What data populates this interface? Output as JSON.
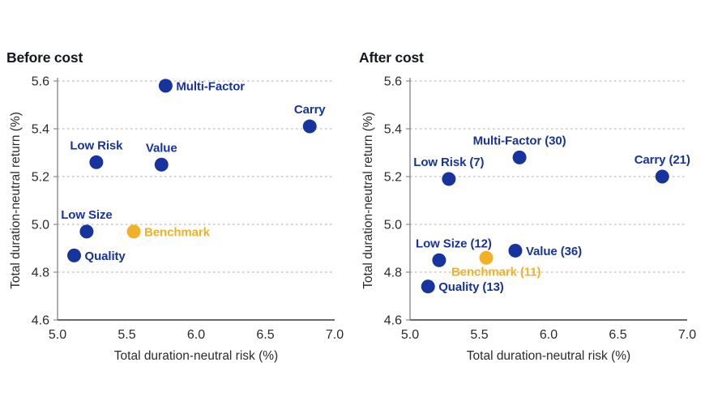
{
  "page": {
    "background": "#ffffff"
  },
  "colors": {
    "factor_blue": "#16339E",
    "benchmark_yellow": "#F2B027",
    "title_text": "#14171D",
    "axis_text": "#2B2B2B",
    "axis_line": "#8A8A8A",
    "axis_line_dark": "#6B6B6B",
    "gridline": "#ADADAD"
  },
  "chart_data": [
    {
      "type": "scatter",
      "title": "Before cost",
      "xlabel": "Total duration-neutral risk (%)",
      "ylabel": "Total duration-neutral return (%)",
      "xlim": [
        5.0,
        7.0
      ],
      "ylim": [
        4.6,
        5.6
      ],
      "xticks": [
        "5.0",
        "5.5",
        "6.0",
        "6.5",
        "7.0"
      ],
      "yticks": [
        "4.6",
        "4.8",
        "5.0",
        "5.2",
        "5.4",
        "5.6"
      ],
      "grid": "horizontal dashed gridlines, no legend",
      "points": [
        {
          "label": "Multi-Factor",
          "x": 5.78,
          "y": 5.58,
          "color": "factor_blue",
          "label_pos": "right"
        },
        {
          "label": "Carry",
          "x": 6.82,
          "y": 5.41,
          "color": "factor_blue",
          "label_pos": "above"
        },
        {
          "label": "Low Risk",
          "x": 5.28,
          "y": 5.26,
          "color": "factor_blue",
          "label_pos": "above"
        },
        {
          "label": "Value",
          "x": 5.75,
          "y": 5.25,
          "color": "factor_blue",
          "label_pos": "above"
        },
        {
          "label": "Low Size",
          "x": 5.21,
          "y": 4.97,
          "color": "factor_blue",
          "label_pos": "above"
        },
        {
          "label": "Benchmark",
          "x": 5.55,
          "y": 4.97,
          "color": "benchmark_yellow",
          "label_pos": "right"
        },
        {
          "label": "Quality",
          "x": 5.12,
          "y": 4.87,
          "color": "factor_blue",
          "label_pos": "right"
        }
      ]
    },
    {
      "type": "scatter",
      "title": "After cost",
      "xlabel": "Total duration-neutral risk (%)",
      "ylabel": "Total duration-neutral return (%)",
      "xlim": [
        5.0,
        7.0
      ],
      "ylim": [
        4.6,
        5.6
      ],
      "xticks": [
        "5.0",
        "5.5",
        "6.0",
        "6.5",
        "7.0"
      ],
      "yticks": [
        "4.6",
        "4.8",
        "5.0",
        "5.2",
        "5.4",
        "5.6"
      ],
      "grid": "horizontal dashed gridlines, no legend",
      "points": [
        {
          "label": "Multi-Factor (30)",
          "x": 5.79,
          "y": 5.28,
          "color": "factor_blue",
          "label_pos": "above"
        },
        {
          "label": "Low Risk (7)",
          "x": 5.28,
          "y": 5.19,
          "color": "factor_blue",
          "label_pos": "above"
        },
        {
          "label": "Carry (21)",
          "x": 6.82,
          "y": 5.2,
          "color": "factor_blue",
          "label_pos": "above"
        },
        {
          "label": "Low Size (12)",
          "x": 5.21,
          "y": 4.85,
          "color": "factor_blue",
          "label_pos": "above",
          "label_dx": 18
        },
        {
          "label": "Value (36)",
          "x": 5.76,
          "y": 4.89,
          "color": "factor_blue",
          "label_pos": "right"
        },
        {
          "label": "Benchmark (11)",
          "x": 5.55,
          "y": 4.86,
          "color": "benchmark_yellow",
          "label_pos": "below-left",
          "label_dx": -43
        },
        {
          "label": "Quality (13)",
          "x": 5.13,
          "y": 4.74,
          "color": "factor_blue",
          "label_pos": "right"
        }
      ]
    }
  ]
}
